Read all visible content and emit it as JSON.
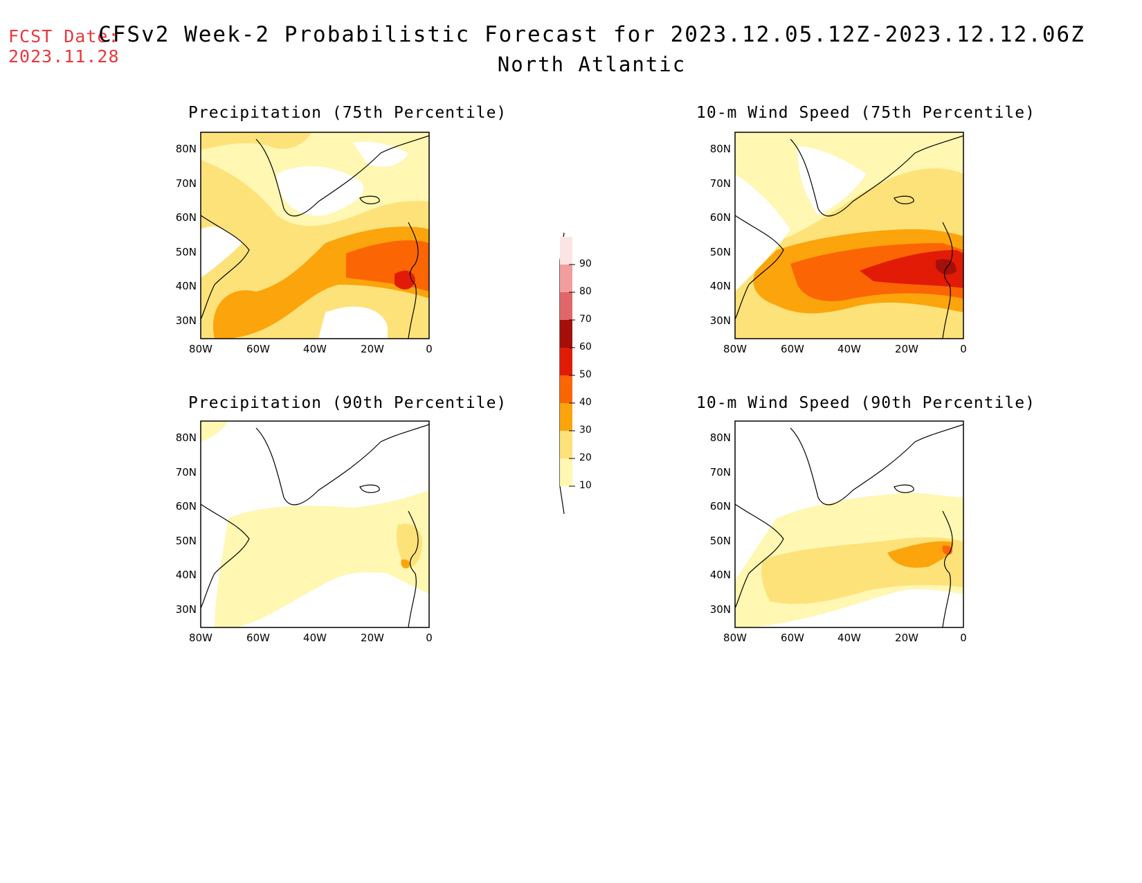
{
  "header": {
    "fcst_label": "FCST Date:",
    "fcst_date": "2023.11.28",
    "title": "CFSv2 Week-2 Probabilistic Forecast for 2023.12.05.12Z-2023.12.12.06Z",
    "subtitle": "North Atlantic"
  },
  "axes": {
    "lat_ticks": [
      "80N",
      "70N",
      "60N",
      "50N",
      "40N",
      "30N"
    ],
    "lon_ticks": [
      "80W",
      "60W",
      "40W",
      "20W",
      "0"
    ]
  },
  "panels": [
    {
      "id": "precip75",
      "title": "Precipitation (75th Percentile)"
    },
    {
      "id": "wind75",
      "title": "10-m Wind Speed (75th Percentile)"
    },
    {
      "id": "precip90",
      "title": "Precipitation (90th Percentile)"
    },
    {
      "id": "wind90",
      "title": "10-m Wind Speed (90th Percentile)"
    }
  ],
  "colorbar": {
    "levels": [
      "10",
      "20",
      "30",
      "40",
      "50",
      "60",
      "70",
      "80",
      "90"
    ],
    "colors": [
      "#fff7b2",
      "#fde27a",
      "#fca40c",
      "#fb6504",
      "#e11b06",
      "#a50f0a",
      "#e0666a",
      "#f29e9e",
      "#fde4e4"
    ]
  }
}
